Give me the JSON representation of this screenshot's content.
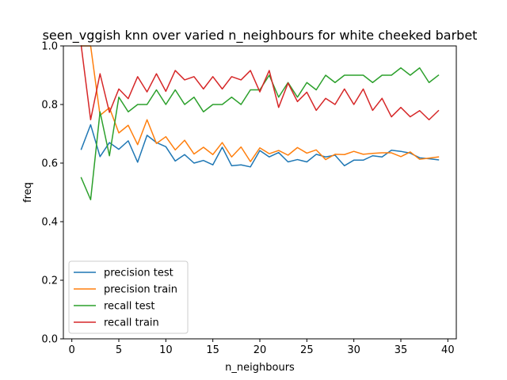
{
  "chart_data": {
    "type": "line",
    "title": "seen_vggish knn over varied n_neighbours for white cheeked barbet",
    "xlabel": "n_neighbours",
    "ylabel": "freq",
    "xlim": [
      -0.9,
      40.9
    ],
    "ylim": [
      0.0,
      1.0
    ],
    "xticks": [
      0,
      5,
      10,
      15,
      20,
      25,
      30,
      35,
      40
    ],
    "yticks": [
      0.0,
      0.2,
      0.4,
      0.6,
      0.8,
      1.0
    ],
    "xtick_labels": [
      "0",
      "5",
      "10",
      "15",
      "20",
      "25",
      "30",
      "35",
      "40"
    ],
    "ytick_labels": [
      "0.0",
      "0.2",
      "0.4",
      "0.6",
      "0.8",
      "1.0"
    ],
    "grid": false,
    "legend_position": "lower-left",
    "x": [
      1,
      2,
      3,
      4,
      5,
      6,
      7,
      8,
      9,
      10,
      11,
      12,
      13,
      14,
      15,
      16,
      17,
      18,
      19,
      20,
      21,
      22,
      23,
      24,
      25,
      26,
      27,
      28,
      29,
      30,
      31,
      32,
      33,
      34,
      35,
      36,
      37,
      38,
      39
    ],
    "series": [
      {
        "name": "precision test",
        "color": "#1f77b4",
        "values": [
          0.647,
          0.731,
          0.622,
          0.67,
          0.647,
          0.676,
          0.603,
          0.695,
          0.67,
          0.656,
          0.607,
          0.629,
          0.6,
          0.609,
          0.594,
          0.654,
          0.591,
          0.594,
          0.587,
          0.643,
          0.621,
          0.636,
          0.604,
          0.612,
          0.604,
          0.63,
          0.621,
          0.627,
          0.591,
          0.61,
          0.61,
          0.625,
          0.621,
          0.644,
          0.64,
          0.634,
          0.618,
          0.615,
          0.611
        ]
      },
      {
        "name": "precision train",
        "color": "#ff7f0e",
        "values": [
          1.0,
          1.0,
          0.763,
          0.789,
          0.703,
          0.729,
          0.663,
          0.748,
          0.667,
          0.69,
          0.645,
          0.678,
          0.631,
          0.654,
          0.629,
          0.67,
          0.621,
          0.655,
          0.605,
          0.652,
          0.632,
          0.643,
          0.627,
          0.653,
          0.634,
          0.645,
          0.612,
          0.63,
          0.629,
          0.64,
          0.63,
          0.633,
          0.635,
          0.635,
          0.622,
          0.638,
          0.613,
          0.617,
          0.621
        ]
      },
      {
        "name": "recall test",
        "color": "#2ca02c",
        "values": [
          0.55,
          0.475,
          0.775,
          0.625,
          0.825,
          0.775,
          0.8,
          0.8,
          0.85,
          0.8,
          0.85,
          0.8,
          0.825,
          0.775,
          0.8,
          0.8,
          0.825,
          0.8,
          0.85,
          0.85,
          0.9,
          0.825,
          0.875,
          0.825,
          0.875,
          0.85,
          0.9,
          0.875,
          0.9,
          0.9,
          0.9,
          0.875,
          0.9,
          0.9,
          0.925,
          0.9,
          0.925,
          0.875,
          0.9
        ]
      },
      {
        "name": "recall train",
        "color": "#d62728",
        "values": [
          1.0,
          0.748,
          0.905,
          0.773,
          0.853,
          0.82,
          0.895,
          0.843,
          0.905,
          0.845,
          0.916,
          0.884,
          0.895,
          0.853,
          0.895,
          0.853,
          0.895,
          0.884,
          0.916,
          0.843,
          0.916,
          0.79,
          0.873,
          0.81,
          0.842,
          0.78,
          0.821,
          0.8,
          0.853,
          0.8,
          0.853,
          0.78,
          0.821,
          0.758,
          0.79,
          0.758,
          0.779,
          0.748,
          0.779
        ]
      }
    ]
  }
}
